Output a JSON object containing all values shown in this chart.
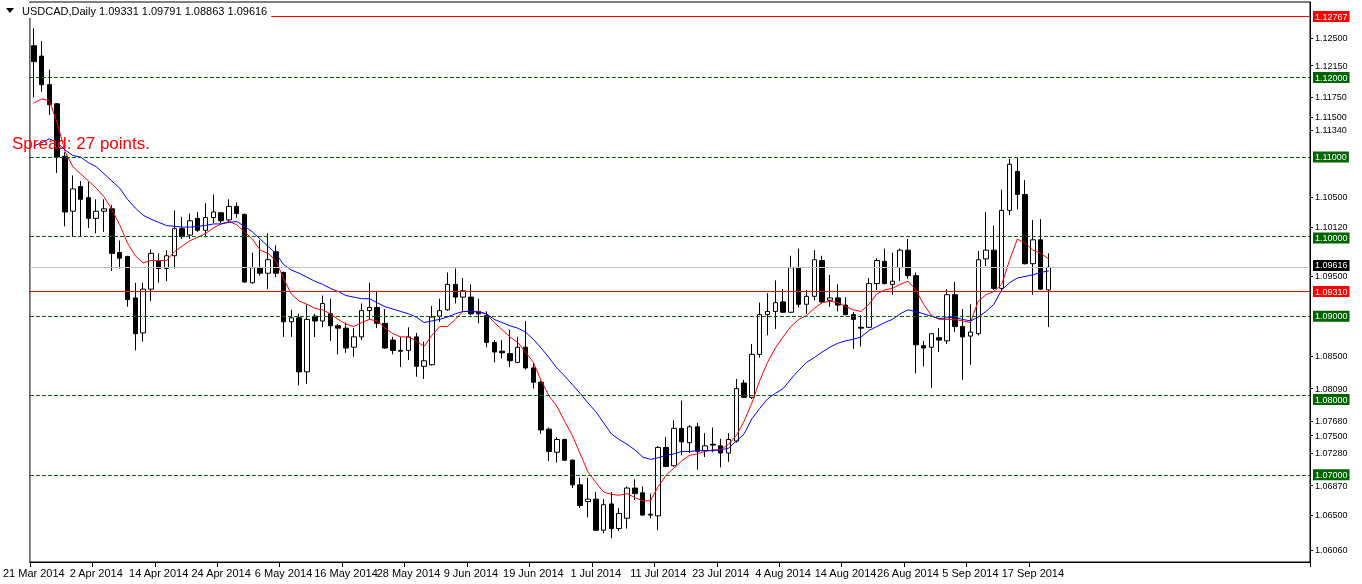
{
  "chart_data": {
    "type": "candlestick",
    "title": "USDCAD,Daily 1.09331 1.09791 1.08863 1.09616",
    "annotations": [
      "Spread: 27 points."
    ],
    "categories": [
      "21 Mar 2014",
      null,
      null,
      null,
      null,
      null,
      null,
      null,
      "2 Apr 2014",
      null,
      null,
      null,
      null,
      null,
      null,
      null,
      "14 Apr 2014",
      null,
      null,
      null,
      null,
      null,
      null,
      null,
      "24 Apr 2014",
      null,
      null,
      null,
      null,
      null,
      null,
      null,
      "6 May 2014",
      null,
      null,
      null,
      null,
      null,
      null,
      null,
      "16 May 2014",
      null,
      null,
      null,
      null,
      null,
      null,
      null,
      "28 May 2014",
      null,
      null,
      null,
      null,
      null,
      null,
      null,
      "9 Jun 2014",
      null,
      null,
      null,
      null,
      null,
      null,
      null,
      "19 Jun 2014",
      null,
      null,
      null,
      null,
      null,
      null,
      null,
      "1 Jul 2014",
      null,
      null,
      null,
      null,
      null,
      null,
      null,
      "11 Jul 2014",
      null,
      null,
      null,
      null,
      null,
      null,
      null,
      "23 Jul 2014",
      null,
      null,
      null,
      null,
      null,
      null,
      null,
      "4 Aug 2014",
      null,
      null,
      null,
      null,
      null,
      null,
      null,
      "14 Aug 2014",
      null,
      null,
      null,
      null,
      null,
      null,
      null,
      "26 Aug 2014",
      null,
      null,
      null,
      null,
      null,
      null,
      null,
      "5 Sep 2014",
      null,
      null,
      null,
      null,
      null,
      null,
      null,
      "17 Sep 2014",
      null,
      null
    ],
    "series": [
      {
        "color": "#000000",
        "ohlc": [
          [
            1.124,
            1.1262,
            1.1175,
            1.122
          ],
          [
            1.1227,
            1.1246,
            1.1182,
            1.1191
          ],
          [
            1.1191,
            1.121,
            1.1153,
            1.1166
          ],
          [
            1.1167,
            1.1168,
            1.108,
            1.11
          ],
          [
            1.1101,
            1.1106,
            1.1013,
            1.1031
          ],
          [
            1.1032,
            1.1077,
            1.1,
            1.106
          ],
          [
            1.1063,
            1.107,
            1.1001,
            1.1047
          ],
          [
            1.1049,
            1.1069,
            1.1011,
            1.1023
          ],
          [
            1.1023,
            1.1047,
            1.1004,
            1.1032
          ],
          [
            1.1032,
            1.1047,
            1.1006,
            1.1035
          ],
          [
            1.1035,
            1.104,
            1.0957,
            1.0979
          ],
          [
            1.098,
            1.0995,
            1.096,
            1.0973
          ],
          [
            1.0975,
            1.0976,
            1.0912,
            1.0921
          ],
          [
            1.0923,
            1.0942,
            1.0857,
            1.0878
          ],
          [
            1.0879,
            1.0942,
            1.0868,
            1.0934
          ],
          [
            1.0934,
            1.0984,
            1.0919,
            1.0979
          ],
          [
            1.097,
            1.0979,
            1.0942,
            1.096
          ],
          [
            1.096,
            1.0983,
            1.0944,
            1.0976
          ],
          [
            1.0976,
            1.1033,
            1.096,
            1.101
          ],
          [
            1.101,
            1.1025,
            1.0997,
            1.1
          ],
          [
            1.1002,
            1.1029,
            1.0997,
            1.102
          ],
          [
            1.1023,
            1.1031,
            1.1006,
            1.1008
          ],
          [
            1.1008,
            1.1042,
            1.0999,
            1.1024
          ],
          [
            1.1024,
            1.1053,
            1.1017,
            1.1031
          ],
          [
            1.103,
            1.1031,
            1.1017,
            1.102
          ],
          [
            1.1021,
            1.1047,
            1.1017,
            1.1038
          ],
          [
            1.1038,
            1.1043,
            1.1024,
            1.1029
          ],
          [
            1.1028,
            1.1029,
            1.0942,
            1.0943
          ],
          [
            1.0942,
            1.098,
            1.0941,
            1.0961
          ],
          [
            1.0961,
            1.0996,
            1.0951,
            1.0954
          ],
          [
            1.0954,
            1.1004,
            1.0934,
            1.0971
          ],
          [
            1.0981,
            1.0989,
            1.0949,
            1.0954
          ],
          [
            1.0955,
            1.0956,
            1.0874,
            1.0893
          ],
          [
            1.0893,
            1.0908,
            1.0874,
            1.0898
          ],
          [
            1.0898,
            1.0903,
            1.0813,
            1.083
          ],
          [
            1.083,
            1.0915,
            1.0815,
            1.0896
          ],
          [
            1.09,
            1.0903,
            1.0874,
            1.0894
          ],
          [
            1.0894,
            1.0926,
            1.0886,
            1.0916
          ],
          [
            1.0903,
            1.0922,
            1.0869,
            1.0888
          ],
          [
            1.0888,
            1.089,
            1.0852,
            1.0885
          ],
          [
            1.0885,
            1.0892,
            1.0854,
            1.086
          ],
          [
            1.0861,
            1.0885,
            1.0849,
            1.0874
          ],
          [
            1.0874,
            1.0916,
            1.087,
            1.0907
          ],
          [
            1.0907,
            1.0942,
            1.0896,
            1.0911
          ],
          [
            1.0911,
            1.0932,
            1.0885,
            1.0891
          ],
          [
            1.0891,
            1.0909,
            1.0859,
            1.086
          ],
          [
            1.087,
            1.0874,
            1.0852,
            1.0857
          ],
          [
            1.0857,
            1.0874,
            1.0836,
            1.0856
          ],
          [
            1.0857,
            1.0886,
            1.0845,
            1.0874
          ],
          [
            1.0874,
            1.0879,
            1.0824,
            1.0837
          ],
          [
            1.0837,
            1.0868,
            1.0821,
            1.0844
          ],
          [
            1.0839,
            1.0913,
            1.0838,
            1.0899
          ],
          [
            1.09,
            1.0922,
            1.0893,
            1.0907
          ],
          [
            1.0908,
            1.0955,
            1.0907,
            1.094
          ],
          [
            1.094,
            1.096,
            1.0916,
            1.0924
          ],
          [
            1.0924,
            1.0948,
            1.0907,
            1.0932
          ],
          [
            1.0924,
            1.094,
            1.0901,
            1.0903
          ],
          [
            1.0906,
            1.0922,
            1.0891,
            1.0903
          ],
          [
            1.0901,
            1.0906,
            1.0861,
            1.0867
          ],
          [
            1.0867,
            1.087,
            1.0842,
            1.0855
          ],
          [
            1.0856,
            1.087,
            1.0847,
            1.0854
          ],
          [
            1.0853,
            1.0883,
            1.0836,
            1.0844
          ],
          [
            1.0842,
            1.0874,
            1.0841,
            1.0861
          ],
          [
            1.0861,
            1.0894,
            1.0833,
            1.0835
          ],
          [
            1.0835,
            1.0841,
            1.0809,
            1.0817
          ],
          [
            1.0817,
            1.0819,
            1.0752,
            1.0757
          ],
          [
            1.0758,
            1.076,
            1.0718,
            1.073
          ],
          [
            1.0729,
            1.0748,
            1.0716,
            1.0745
          ],
          [
            1.0745,
            1.0746,
            1.0718,
            1.0719
          ],
          [
            1.0719,
            1.072,
            1.0684,
            1.0688
          ],
          [
            1.0688,
            1.0697,
            1.0659,
            1.0662
          ],
          [
            1.0667,
            1.0697,
            1.0647,
            1.067
          ],
          [
            1.067,
            1.0679,
            1.063,
            1.0631
          ],
          [
            1.0631,
            1.067,
            1.0627,
            1.0663
          ],
          [
            1.0664,
            1.0679,
            1.0621,
            1.0633
          ],
          [
            1.0633,
            1.0659,
            1.063,
            1.0652
          ],
          [
            1.0646,
            1.0686,
            1.0633,
            1.0684
          ],
          [
            1.0684,
            1.0695,
            1.0669,
            1.0677
          ],
          [
            1.0678,
            1.0686,
            1.0649,
            1.065
          ],
          [
            1.0651,
            1.0677,
            1.0646,
            1.065
          ],
          [
            1.0649,
            1.0737,
            1.0631,
            1.0735
          ],
          [
            1.0735,
            1.0748,
            1.071,
            1.0711
          ],
          [
            1.0712,
            1.0769,
            1.0711,
            1.0759
          ],
          [
            1.0759,
            1.0794,
            1.0725,
            1.0742
          ],
          [
            1.0741,
            1.0763,
            1.0728,
            1.0761
          ],
          [
            1.0761,
            1.0766,
            1.0707,
            1.073
          ],
          [
            1.0731,
            1.0753,
            1.0723,
            1.0737
          ],
          [
            1.0739,
            1.076,
            1.0729,
            1.0738
          ],
          [
            1.0737,
            1.0746,
            1.071,
            1.0728
          ],
          [
            1.0728,
            1.0753,
            1.0717,
            1.0745
          ],
          [
            1.0743,
            1.0821,
            1.0741,
            1.0809
          ],
          [
            1.0816,
            1.082,
            1.0797,
            1.0798
          ],
          [
            1.0798,
            1.0865,
            1.0796,
            1.0852
          ],
          [
            1.0852,
            1.0917,
            1.0848,
            1.0902
          ],
          [
            1.0902,
            1.0929,
            1.0876,
            1.0906
          ],
          [
            1.0906,
            1.0945,
            1.0884,
            1.0917
          ],
          [
            1.0918,
            1.0934,
            1.0904,
            1.0905
          ],
          [
            1.0905,
            1.0976,
            1.0904,
            1.0961
          ],
          [
            1.0961,
            1.0985,
            1.0911,
            1.0915
          ],
          [
            1.0915,
            1.0933,
            1.0903,
            1.0925
          ],
          [
            1.0925,
            1.0983,
            1.092,
            1.0971
          ],
          [
            1.097,
            1.0976,
            1.0916,
            1.0918
          ],
          [
            1.092,
            1.0952,
            1.0912,
            1.0923
          ],
          [
            1.0923,
            1.094,
            1.0906,
            1.0914
          ],
          [
            1.0914,
            1.0924,
            1.0901,
            1.0902
          ],
          [
            1.0902,
            1.0905,
            1.0859,
            1.0896
          ],
          [
            1.0886,
            1.0901,
            1.0862,
            1.0885
          ],
          [
            1.0886,
            1.0948,
            1.0885,
            1.0941
          ],
          [
            1.0941,
            1.0973,
            1.0933,
            1.097
          ],
          [
            1.0969,
            1.0985,
            1.094,
            1.0941
          ],
          [
            1.094,
            1.098,
            1.0927,
            1.0944
          ],
          [
            1.0961,
            1.0985,
            1.0944,
            1.0983
          ],
          [
            1.0983,
            1.0997,
            1.0947,
            1.0951
          ],
          [
            1.0951,
            1.0955,
            1.0828,
            1.0864
          ],
          [
            1.0863,
            1.0869,
            1.0837,
            1.086
          ],
          [
            1.0861,
            1.0879,
            1.081,
            1.0878
          ],
          [
            1.0873,
            1.0885,
            1.0855,
            1.087
          ],
          [
            1.0869,
            1.0934,
            1.0865,
            1.0927
          ],
          [
            1.0927,
            1.0943,
            1.088,
            1.0887
          ],
          [
            1.0887,
            1.0909,
            1.082,
            1.0874
          ],
          [
            1.0875,
            1.0915,
            1.0839,
            1.088
          ],
          [
            1.0878,
            1.0982,
            1.0876,
            1.0971
          ],
          [
            1.0972,
            1.1031,
            1.0963,
            1.0983
          ],
          [
            1.0983,
            1.1014,
            1.0933,
            1.0935
          ],
          [
            1.0935,
            1.1059,
            1.0933,
            1.1033
          ],
          [
            1.1033,
            1.1098,
            1.1027,
            1.1091
          ],
          [
            1.1082,
            1.11,
            1.1034,
            1.1053
          ],
          [
            1.1053,
            1.1071,
            1.0965,
            1.0966
          ],
          [
            1.0966,
            1.1021,
            1.0927,
            1.0996
          ],
          [
            1.0996,
            1.1022,
            1.0933,
            1.0934
          ],
          [
            1.09331,
            1.09791,
            1.08863,
            1.09616
          ]
        ]
      },
      {
        "type": "line",
        "color": "#ff0000",
        "values": [
          1.1168,
          1.1173,
          1.1171,
          1.1143,
          1.1107,
          1.1088,
          1.1079,
          1.107,
          1.1061,
          1.105,
          1.1034,
          1.1015,
          1.0992,
          1.0976,
          1.0967,
          1.097,
          1.097,
          1.097,
          1.0981,
          1.0988,
          1.0995,
          1.0999,
          1.1004,
          1.1011,
          1.1016,
          1.1019,
          1.1015,
          1.1006,
          1.0997,
          1.0983,
          1.0979,
          1.097,
          1.0947,
          1.0928,
          1.0919,
          1.0915,
          1.091,
          1.0908,
          1.0903,
          1.0896,
          1.089,
          1.0887,
          1.0892,
          1.0896,
          1.0894,
          1.0885,
          1.0878,
          1.0874,
          1.0874,
          1.0869,
          1.0862,
          1.0876,
          1.0887,
          1.0887,
          1.0896,
          1.0906,
          1.0906,
          1.0906,
          1.0903,
          1.0892,
          1.0883,
          1.0874,
          1.0867,
          1.0855,
          1.0842,
          1.0819,
          1.08,
          1.0787,
          1.0768,
          1.075,
          1.0727,
          1.0704,
          1.0691,
          1.0679,
          1.0676,
          1.0675,
          1.0677,
          1.0672,
          1.0668,
          1.0668,
          1.0686,
          1.07,
          1.0709,
          1.0718,
          1.0725,
          1.0727,
          1.073,
          1.0732,
          1.0732,
          1.0739,
          1.075,
          1.0768,
          1.0791,
          1.0819,
          1.0842,
          1.086,
          1.0874,
          1.0887,
          1.0896,
          1.0901,
          1.091,
          1.0917,
          1.0919,
          1.0917,
          1.0912,
          1.0908,
          1.0906,
          1.0915,
          1.0928,
          1.0933,
          1.0935,
          1.094,
          1.0944,
          1.0933,
          1.0915,
          1.0901,
          1.0896,
          1.0896,
          1.0896,
          1.0894,
          1.0892,
          1.0919,
          1.0927,
          1.0931,
          1.094,
          1.097,
          1.0997,
          1.0992,
          1.0983,
          1.0979,
          1.0972
        ]
      },
      {
        "type": "line",
        "color": "#0000ff",
        "values": [
          1.1114,
          1.1118,
          1.1123,
          1.1118,
          1.1109,
          1.1102,
          1.11,
          1.1093,
          1.1088,
          1.1079,
          1.107,
          1.1061,
          1.1047,
          1.1036,
          1.1027,
          1.1022,
          1.1018,
          1.1014,
          1.1013,
          1.1012,
          1.1012,
          1.1013,
          1.1014,
          1.1016,
          1.1016,
          1.1018,
          1.1019,
          1.1013,
          1.1006,
          1.0997,
          1.0988,
          1.0979,
          1.0965,
          1.0958,
          1.0954,
          1.0949,
          1.0944,
          1.094,
          1.0935,
          1.0931,
          1.0926,
          1.0924,
          1.0922,
          1.0922,
          1.0917,
          1.0912,
          1.0909,
          1.0906,
          1.0903,
          1.0899,
          1.0892,
          1.0894,
          1.0896,
          1.0899,
          1.0903,
          1.0906,
          1.0906,
          1.0905,
          1.0903,
          1.0896,
          1.0892,
          1.0888,
          1.0885,
          1.088,
          1.0871,
          1.086,
          1.0848,
          1.0835,
          1.0825,
          1.0814,
          1.0803,
          1.0791,
          1.078,
          1.0766,
          1.0752,
          1.0745,
          1.0739,
          1.0732,
          1.0723,
          1.072,
          1.0722,
          1.0725,
          1.0727,
          1.073,
          1.073,
          1.0731,
          1.0731,
          1.0731,
          1.0732,
          1.0734,
          1.0743,
          1.0752,
          1.0771,
          1.0784,
          1.0796,
          1.0803,
          1.0809,
          1.0821,
          1.0832,
          1.0842,
          1.0848,
          1.0855,
          1.0861,
          1.0866,
          1.0869,
          1.0871,
          1.0874,
          1.0882,
          1.0887,
          1.0892,
          1.0896,
          1.0903,
          1.0908,
          1.0906,
          1.0903,
          1.09,
          1.0897,
          1.0898,
          1.0899,
          1.0896,
          1.0894,
          1.0899,
          1.0906,
          1.0915,
          1.0933,
          1.0942,
          1.0948,
          1.095,
          1.0952,
          1.0955,
          1.0957
        ]
      }
    ],
    "ylim": [
      1.0591,
      1.1295
    ],
    "yticks": [
      {
        "value": 1.0606,
        "label": "1.06060"
      },
      {
        "value": 1.065,
        "label": "1.06500"
      },
      {
        "value": 1.0687,
        "label": "1.06870"
      },
      {
        "value": 1.0728,
        "label": "1.07280"
      },
      {
        "value": 1.075,
        "label": "1.07500"
      },
      {
        "value": 1.0768,
        "label": "1.07680"
      },
      {
        "value": 1.0809,
        "label": "1.08090"
      },
      {
        "value": 1.085,
        "label": "1.08500"
      },
      {
        "value": 1.095,
        "label": "1.09500"
      },
      {
        "value": 1.1012,
        "label": "1.10120"
      },
      {
        "value": 1.105,
        "label": "1.10500"
      },
      {
        "value": 1.1134,
        "label": "1.11340"
      },
      {
        "value": 1.115,
        "label": "1.11500"
      },
      {
        "value": 1.1175,
        "label": "1.11750"
      },
      {
        "value": 1.1215,
        "label": "1.12150"
      },
      {
        "value": 1.125,
        "label": "1.12500"
      }
    ],
    "ref_lines": [
      {
        "axis": "y",
        "value": 1.12767,
        "label": "1.12767",
        "color": "#ff0000",
        "line_style": "solid"
      },
      {
        "axis": "y",
        "value": 1.12,
        "label": "1.12000",
        "color": "#006400",
        "line_style": "dashed"
      },
      {
        "axis": "y",
        "value": 1.11,
        "label": "1.11000",
        "color": "#006400",
        "line_style": "dashed"
      },
      {
        "axis": "y",
        "value": 1.1,
        "label": "1.10000",
        "color": "#006400",
        "line_style": "dashed"
      },
      {
        "axis": "y",
        "value": 1.09616,
        "label": "1.09616",
        "color": "#c0c0c0",
        "line_style": "solid"
      },
      {
        "axis": "y",
        "value": 1.0931,
        "label": "1.09310",
        "color": "#ff0000",
        "line_style": "solid"
      },
      {
        "axis": "y",
        "value": 1.09,
        "label": "1.09000",
        "color": "#006400",
        "line_style": "dashed"
      },
      {
        "axis": "y",
        "value": 1.08,
        "label": "1.08000",
        "color": "#006400",
        "line_style": "dashed"
      },
      {
        "axis": "y",
        "value": 1.07,
        "label": "1.07000",
        "color": "#006400",
        "line_style": "dashed"
      }
    ],
    "marker": "none",
    "line_style": "solid"
  }
}
